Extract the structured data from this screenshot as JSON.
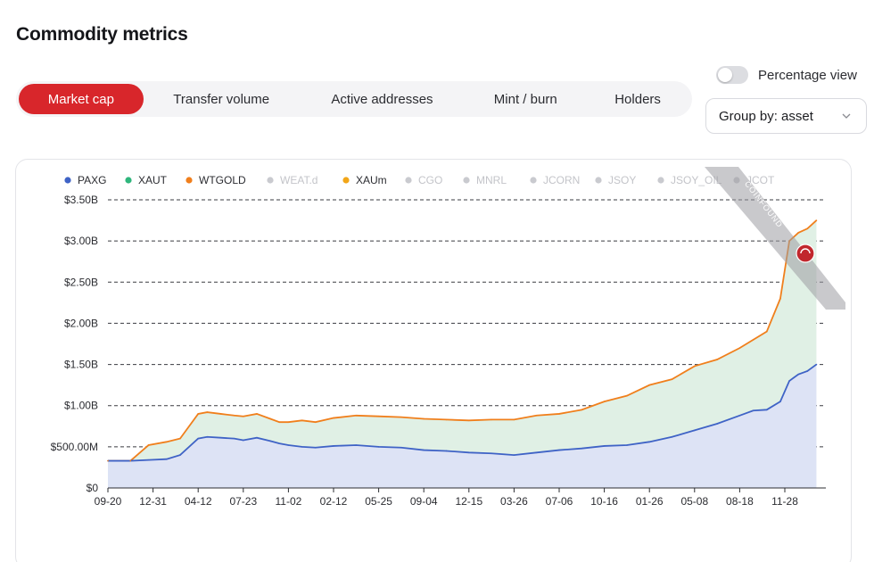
{
  "page": {
    "title": "Commodity metrics"
  },
  "tabs": [
    {
      "label": "Market cap",
      "active": true
    },
    {
      "label": "Transfer volume",
      "active": false
    },
    {
      "label": "Active addresses",
      "active": false
    },
    {
      "label": "Mint / burn",
      "active": false
    },
    {
      "label": "Holders",
      "active": false
    }
  ],
  "toggle": {
    "label": "Percentage view",
    "on": false
  },
  "groupby": {
    "label": "Group by: asset",
    "icon": "chevron-down-icon"
  },
  "colors": {
    "accent": "#d8262b",
    "PAXG": "#3f63c6",
    "XAUT": "#2fb67c",
    "WTGOLD": "#f07f1c",
    "XAUm": "#f2a618",
    "inactive": "#c9cacf",
    "paxg_fill": "#dde3f5",
    "xaut_fill": "#e0f0e5"
  },
  "watermark": {
    "text": "COINFOUND"
  },
  "chart_data": {
    "type": "area",
    "title": "",
    "xlabel": "",
    "ylabel": "",
    "ylim": [
      0,
      3500000000
    ],
    "grid": "horizontal-dashed",
    "legend_position": "top",
    "legend": [
      {
        "name": "PAXG",
        "active": true
      },
      {
        "name": "XAUT",
        "active": true
      },
      {
        "name": "WTGOLD",
        "active": true
      },
      {
        "name": "WEAT.d",
        "active": false
      },
      {
        "name": "XAUm",
        "active": true
      },
      {
        "name": "CGO",
        "active": false
      },
      {
        "name": "MNRL",
        "active": false
      },
      {
        "name": "JCORN",
        "active": false
      },
      {
        "name": "JSOY",
        "active": false
      },
      {
        "name": "JSOY_OIL",
        "active": false
      },
      {
        "name": "JCOT",
        "active": false
      }
    ],
    "y_ticks": [
      {
        "value": 0,
        "label": "$0"
      },
      {
        "value": 500000000,
        "label": "$500.00M"
      },
      {
        "value": 1000000000,
        "label": "$1.00B"
      },
      {
        "value": 1500000000,
        "label": "$1.50B"
      },
      {
        "value": 2000000000,
        "label": "$2.00B"
      },
      {
        "value": 2500000000,
        "label": "$2.50B"
      },
      {
        "value": 3000000000,
        "label": "$3.00B"
      },
      {
        "value": 3500000000,
        "label": "$3.50B"
      }
    ],
    "x_tick_labels": [
      "09-20",
      "12-31",
      "04-12",
      "07-23",
      "11-02",
      "02-12",
      "05-25",
      "09-04",
      "12-15",
      "03-26",
      "07-06",
      "10-16",
      "01-26",
      "05-08",
      "08-18",
      "11-28"
    ],
    "series": [
      {
        "name": "PAXG",
        "x_tick_index": [
          0,
          0.5,
          0.9,
          1.3,
          1.6,
          2.0,
          2.2,
          2.5,
          2.8,
          3.0,
          3.3,
          3.6,
          3.8,
          4.0,
          4.3,
          4.6,
          5.0,
          5.5,
          6.0,
          6.5,
          7.0,
          7.5,
          8.0,
          8.5,
          9.0,
          9.5,
          10.0,
          10.5,
          11.0,
          11.5,
          12.0,
          12.5,
          13.0,
          13.5,
          14.0,
          14.3,
          14.6,
          14.9,
          15.1,
          15.3,
          15.5,
          15.7
        ],
        "values": [
          330000000,
          330000000,
          340000000,
          350000000,
          400000000,
          600000000,
          620000000,
          610000000,
          600000000,
          580000000,
          610000000,
          570000000,
          540000000,
          520000000,
          500000000,
          490000000,
          510000000,
          520000000,
          500000000,
          490000000,
          460000000,
          450000000,
          430000000,
          420000000,
          400000000,
          430000000,
          460000000,
          480000000,
          510000000,
          520000000,
          560000000,
          620000000,
          700000000,
          780000000,
          880000000,
          940000000,
          950000000,
          1050000000,
          1300000000,
          1380000000,
          1420000000,
          1500000000
        ]
      },
      {
        "name": "XAUT",
        "x_tick_index": [
          0,
          0.5,
          0.9,
          1.3,
          1.6,
          2.0,
          2.2,
          2.5,
          2.8,
          3.0,
          3.3,
          3.6,
          3.8,
          4.0,
          4.3,
          4.6,
          5.0,
          5.5,
          6.0,
          6.5,
          7.0,
          7.5,
          8.0,
          8.5,
          9.0,
          9.5,
          10.0,
          10.5,
          11.0,
          11.5,
          12.0,
          12.5,
          13.0,
          13.5,
          14.0,
          14.3,
          14.6,
          14.9,
          15.1,
          15.3,
          15.5,
          15.7
        ],
        "values": [
          330000000,
          330000000,
          520000000,
          560000000,
          600000000,
          900000000,
          920000000,
          900000000,
          880000000,
          870000000,
          900000000,
          840000000,
          800000000,
          800000000,
          820000000,
          800000000,
          850000000,
          880000000,
          870000000,
          860000000,
          840000000,
          830000000,
          820000000,
          830000000,
          830000000,
          880000000,
          900000000,
          950000000,
          1050000000,
          1120000000,
          1250000000,
          1320000000,
          1480000000,
          1560000000,
          1700000000,
          1800000000,
          1900000000,
          2300000000,
          3000000000,
          3100000000,
          3150000000,
          3250000000
        ]
      }
    ]
  }
}
